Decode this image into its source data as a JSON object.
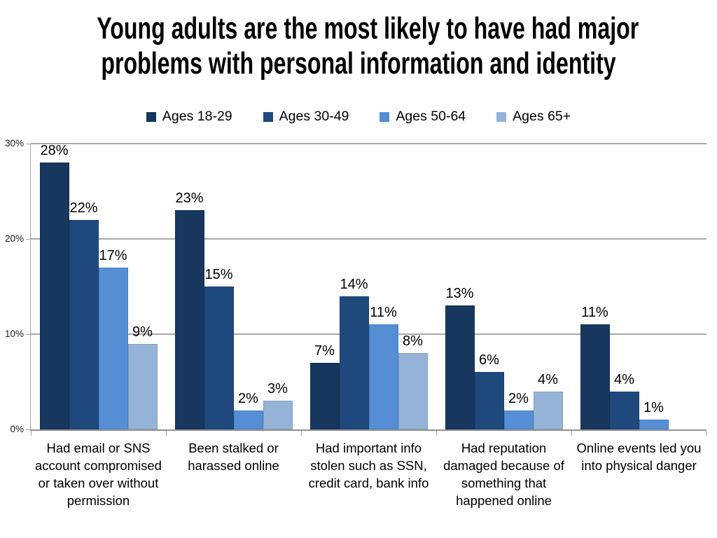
{
  "slide": {
    "title_lines": [
      "Young adults are the most likely to have had major",
      "problems with personal information and identity"
    ]
  },
  "chart_data": {
    "type": "bar",
    "title": "Young adults are the most likely to have had major problems with personal information and identity",
    "categories": [
      "Had email or SNS account compromised or taken over without permission",
      "Been stalked or harassed online",
      "Had important info stolen such as SSN, credit card, bank info",
      "Had reputation damaged because of something that happened online",
      "Online events led you into physical danger"
    ],
    "series": [
      {
        "name": "Ages 18-29",
        "color": "#17375E",
        "values": [
          28,
          23,
          7,
          13,
          11
        ]
      },
      {
        "name": "Ages 30-49",
        "color": "#1F497D",
        "values": [
          22,
          15,
          14,
          6,
          4
        ]
      },
      {
        "name": "Ages 50-64",
        "color": "#558ED5",
        "values": [
          17,
          2,
          11,
          2,
          1
        ]
      },
      {
        "name": "Ages 65+",
        "color": "#95B3D7",
        "values": [
          9,
          3,
          8,
          4,
          null
        ]
      }
    ],
    "value_label_suffix": "%",
    "ylim": [
      0,
      30
    ],
    "y_ticks": [
      {
        "value": 0,
        "label": "0%"
      },
      {
        "value": 10,
        "label": "10%"
      },
      {
        "value": 20,
        "label": "20%"
      },
      {
        "value": 30,
        "label": "30%"
      }
    ],
    "grid": true,
    "legend_position": "top",
    "colors": {
      "gridline": "#A9A9A9",
      "axis": "#919191",
      "tick": "#A0A0A0",
      "text": "#000000"
    }
  }
}
